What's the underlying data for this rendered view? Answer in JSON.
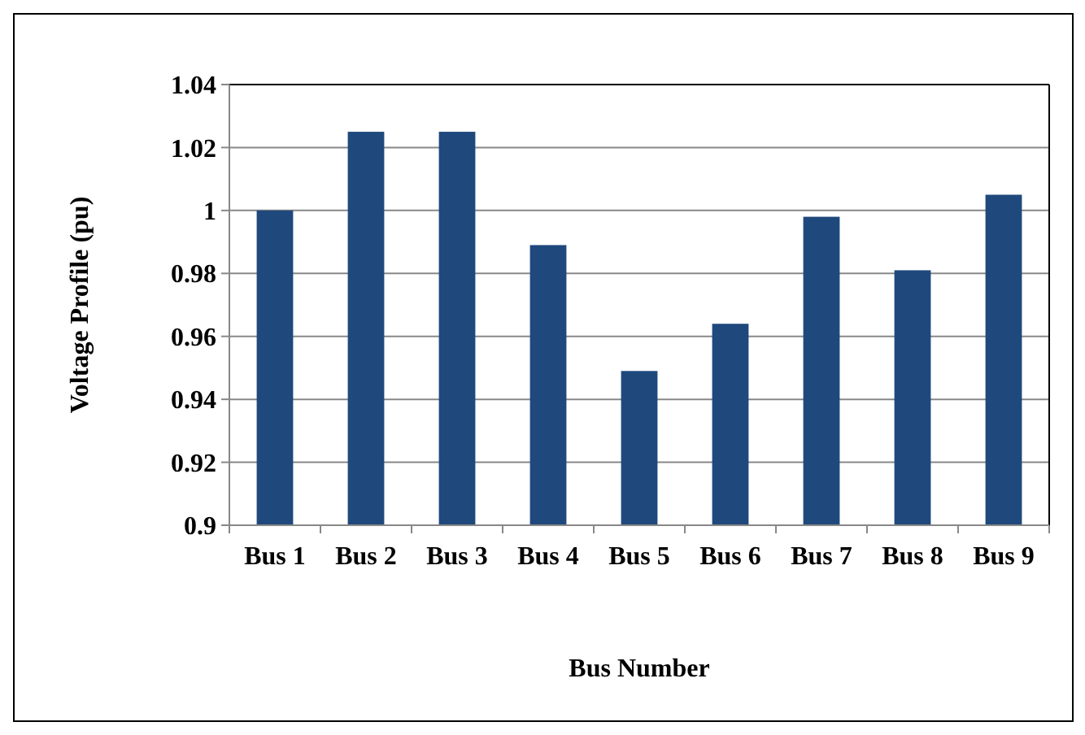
{
  "chart_data": {
    "type": "bar",
    "xlabel": "Bus Number",
    "ylabel": "Voltage Profile (pu)",
    "categories": [
      "Bus 1",
      "Bus 2",
      "Bus 3",
      "Bus 4",
      "Bus 5",
      "Bus 6",
      "Bus 7",
      "Bus 8",
      "Bus 9"
    ],
    "values": [
      1.0,
      1.025,
      1.025,
      0.989,
      0.949,
      0.964,
      0.998,
      0.981,
      1.005
    ],
    "color": "#1f497d",
    "ylim": [
      0.9,
      1.04
    ],
    "yticks": [
      0.9,
      0.92,
      0.94,
      0.96,
      0.98,
      1,
      1.02,
      1.04
    ],
    "grid": "y"
  }
}
